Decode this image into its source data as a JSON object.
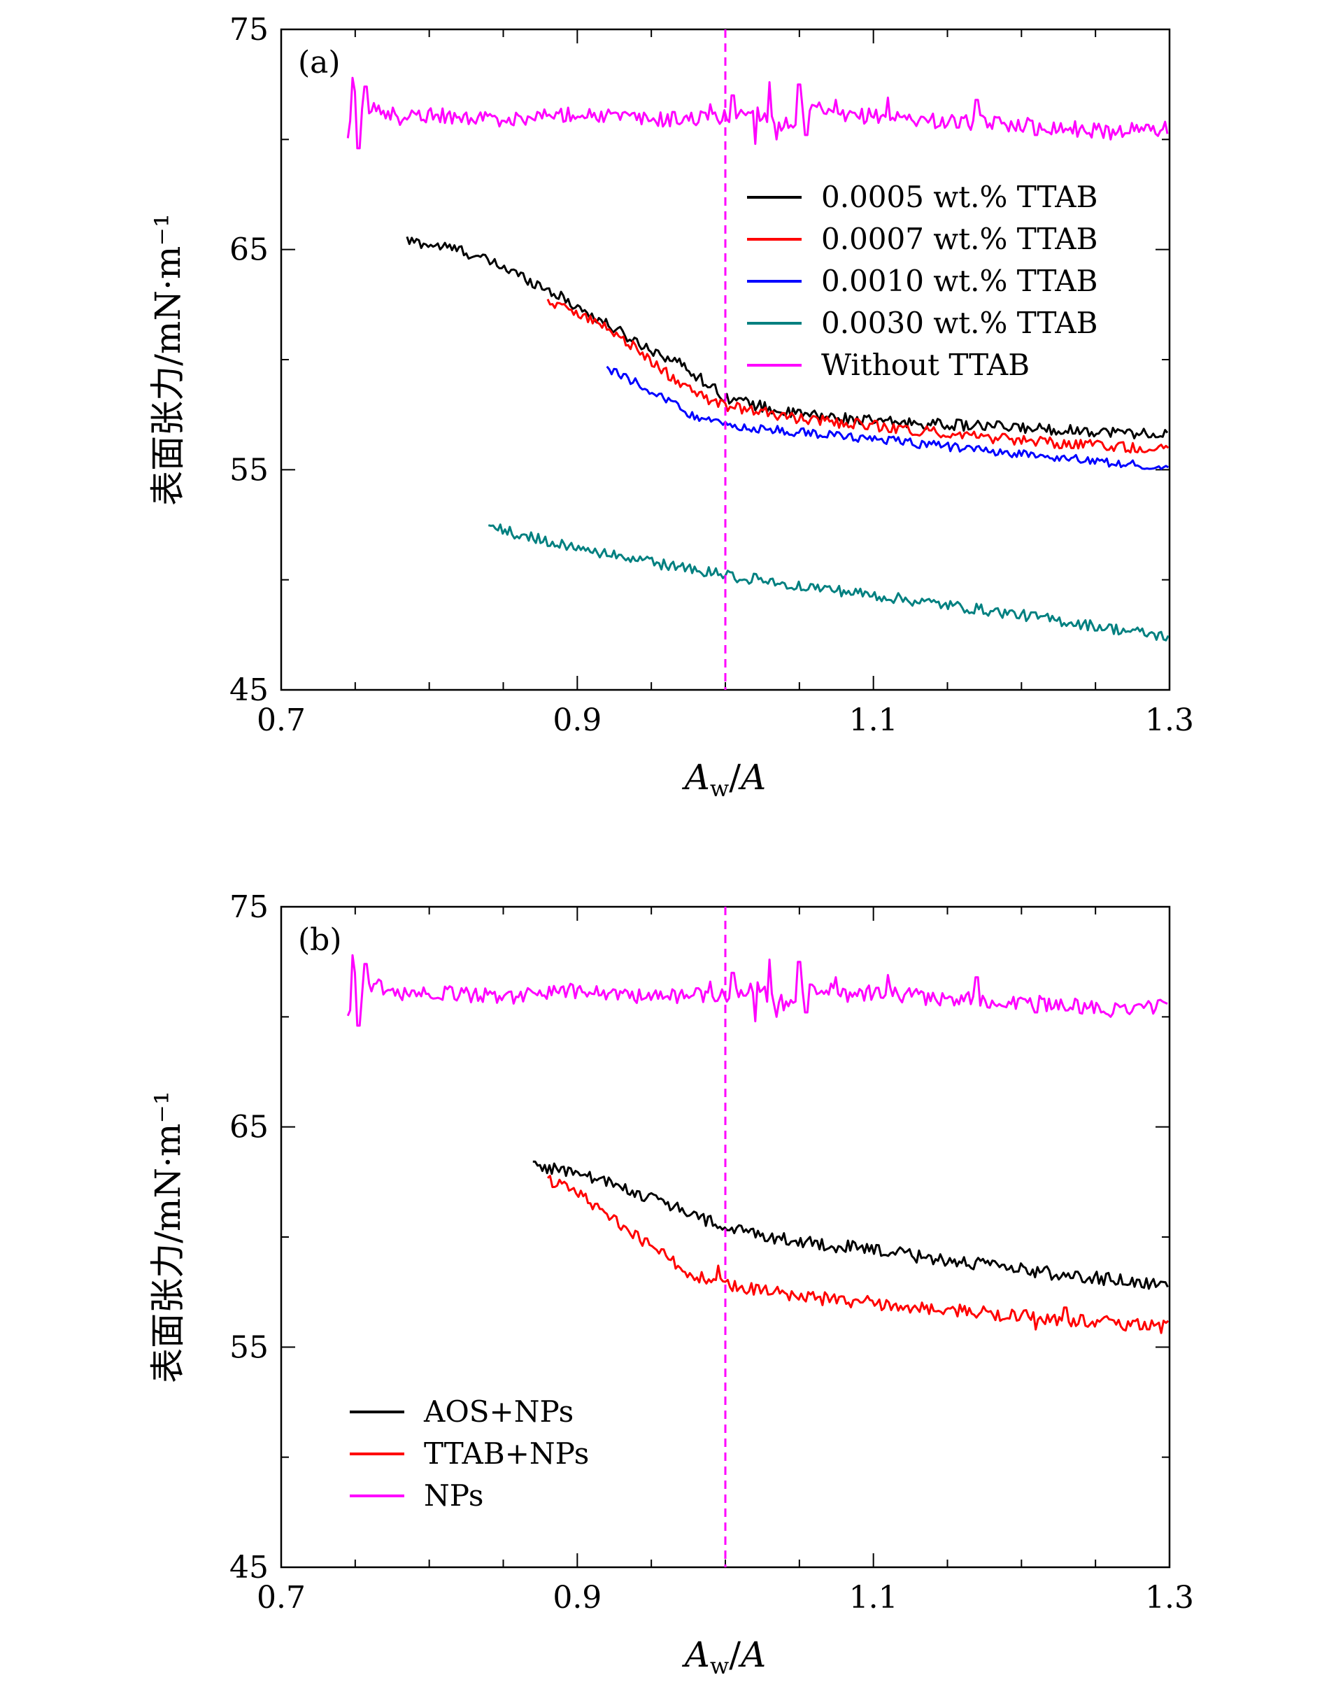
{
  "chart_data": [
    {
      "type": "line",
      "panel_label": "(a)",
      "xlabel": "A_w/A",
      "ylabel": "表面张力/mN·m⁻¹",
      "xlim": [
        0.7,
        1.3
      ],
      "ylim": [
        45,
        75
      ],
      "x_ticks": [
        0.7,
        0.9,
        1.1,
        1.3
      ],
      "y_ticks": [
        45,
        55,
        65,
        75
      ],
      "grid": false,
      "legend_position": "top-right",
      "reference_line": {
        "x": 1.0,
        "style": "dashed",
        "color": "#ff00ff"
      },
      "series": [
        {
          "name": "0.0005 wt.% TTAB",
          "color": "#000000",
          "noise": 0.25,
          "x": [
            0.785,
            0.82,
            0.85,
            0.88,
            0.91,
            0.94,
            0.97,
            1.0,
            1.04,
            1.1,
            1.2,
            1.3
          ],
          "y": [
            65.4,
            65.0,
            64.2,
            63.2,
            62.0,
            60.8,
            59.8,
            58.3,
            57.6,
            57.2,
            56.9,
            56.6
          ]
        },
        {
          "name": "0.0007 wt.% TTAB",
          "color": "#ff0000",
          "noise": 0.25,
          "x": [
            0.88,
            0.9,
            0.93,
            0.96,
            0.98,
            1.0,
            1.05,
            1.1,
            1.2,
            1.3
          ],
          "y": [
            62.6,
            62.2,
            61.0,
            59.4,
            58.4,
            57.9,
            57.3,
            57.0,
            56.3,
            55.9
          ]
        },
        {
          "name": "0.0010 wt.% TTAB",
          "color": "#0000ff",
          "noise": 0.2,
          "x": [
            0.92,
            0.95,
            0.98,
            1.0,
            1.05,
            1.1,
            1.2,
            1.3
          ],
          "y": [
            59.6,
            58.6,
            57.4,
            57.0,
            56.7,
            56.4,
            55.7,
            55.1
          ]
        },
        {
          "name": "0.0030 wt.% TTAB",
          "color": "#008080",
          "noise": 0.25,
          "x": [
            0.84,
            0.9,
            1.0,
            1.1,
            1.2,
            1.3
          ],
          "y": [
            52.4,
            51.4,
            50.2,
            49.3,
            48.4,
            47.4
          ]
        },
        {
          "name": "Without TTAB",
          "color": "#ff00ff",
          "noise": 0.35,
          "x": [
            0.745,
            0.75,
            0.755,
            0.76,
            0.78,
            0.8,
            0.85,
            0.9,
            0.95,
            1.0,
            1.02,
            1.04,
            1.06,
            1.08,
            1.1,
            1.15,
            1.2,
            1.25,
            1.3
          ],
          "y": [
            70.0,
            72.0,
            71.0,
            71.5,
            71.0,
            71.1,
            70.9,
            71.2,
            70.9,
            71.0,
            71.3,
            70.6,
            71.4,
            71.0,
            71.1,
            70.8,
            70.7,
            70.4,
            70.5
          ],
          "spikes": [
            [
              0.748,
              72.8
            ],
            [
              0.752,
              69.6
            ],
            [
              0.757,
              72.4
            ],
            [
              0.99,
              71.6
            ],
            [
              1.005,
              72.0
            ],
            [
              1.02,
              69.8
            ],
            [
              1.03,
              72.6
            ],
            [
              1.035,
              70.0
            ],
            [
              1.05,
              72.5
            ],
            [
              1.055,
              70.2
            ],
            [
              1.075,
              71.8
            ],
            [
              1.11,
              71.9
            ],
            [
              1.17,
              71.8
            ],
            [
              1.21,
              70.2
            ],
            [
              1.26,
              70.0
            ]
          ]
        }
      ]
    },
    {
      "type": "line",
      "panel_label": "(b)",
      "xlabel": "A_w/A",
      "ylabel": "表面张力/mN·m⁻¹",
      "xlim": [
        0.7,
        1.3
      ],
      "ylim": [
        45,
        75
      ],
      "x_ticks": [
        0.7,
        0.9,
        1.1,
        1.3
      ],
      "y_ticks": [
        45,
        55,
        65,
        75
      ],
      "grid": false,
      "legend_position": "bottom-left",
      "reference_line": {
        "x": 1.0,
        "style": "dashed",
        "color": "#ff00ff"
      },
      "series": [
        {
          "name": "AOS+NPs",
          "color": "#000000",
          "noise": 0.3,
          "x": [
            0.87,
            0.9,
            0.95,
            1.0,
            1.05,
            1.1,
            1.2,
            1.3
          ],
          "y": [
            63.3,
            62.9,
            61.8,
            60.4,
            59.8,
            59.4,
            58.5,
            57.8
          ]
        },
        {
          "name": "TTAB+NPs",
          "color": "#ff0000",
          "noise": 0.3,
          "x": [
            0.88,
            0.9,
            0.95,
            0.98,
            1.0,
            1.05,
            1.1,
            1.2,
            1.3
          ],
          "y": [
            62.6,
            62.0,
            59.6,
            58.2,
            57.8,
            57.3,
            57.0,
            56.4,
            55.9
          ],
          "spikes": [
            [
              0.995,
              58.7
            ],
            [
              1.21,
              55.8
            ],
            [
              1.23,
              56.8
            ]
          ]
        },
        {
          "name": "NPs",
          "color": "#ff00ff",
          "noise": 0.35,
          "x": [
            0.745,
            0.75,
            0.755,
            0.76,
            0.78,
            0.8,
            0.85,
            0.9,
            0.95,
            1.0,
            1.02,
            1.04,
            1.06,
            1.08,
            1.1,
            1.15,
            1.2,
            1.25,
            1.3
          ],
          "y": [
            70.0,
            72.0,
            71.0,
            71.5,
            71.0,
            71.1,
            70.9,
            71.2,
            70.9,
            71.0,
            71.3,
            70.6,
            71.4,
            71.0,
            71.1,
            70.8,
            70.7,
            70.4,
            70.5
          ],
          "spikes": [
            [
              0.748,
              72.8
            ],
            [
              0.752,
              69.6
            ],
            [
              0.757,
              72.4
            ],
            [
              0.99,
              71.6
            ],
            [
              1.005,
              72.0
            ],
            [
              1.02,
              69.8
            ],
            [
              1.03,
              72.6
            ],
            [
              1.035,
              70.0
            ],
            [
              1.05,
              72.5
            ],
            [
              1.055,
              70.2
            ],
            [
              1.075,
              71.8
            ],
            [
              1.11,
              71.9
            ],
            [
              1.17,
              71.8
            ],
            [
              1.21,
              70.2
            ],
            [
              1.26,
              70.0
            ]
          ]
        }
      ]
    }
  ]
}
